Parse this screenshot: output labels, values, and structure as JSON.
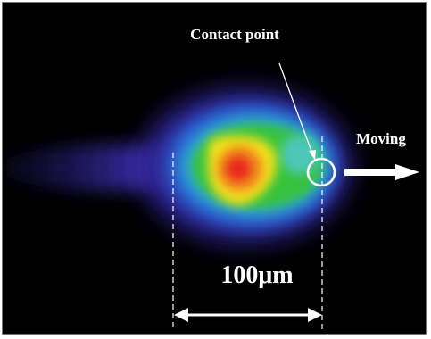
{
  "image": {
    "description_colors": {
      "background": "#000000",
      "annotation": "#ffffff",
      "hot_core": "#e8241c",
      "warm": "#f5e21a",
      "mid": "#34c33c",
      "cool": "#2aa7e0",
      "edge": "#3b2fb0"
    },
    "labels": {
      "contact_point": "Contact point",
      "moving": "Moving",
      "scale": "100μm"
    }
  }
}
